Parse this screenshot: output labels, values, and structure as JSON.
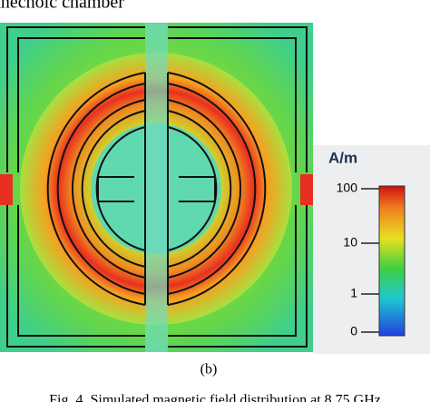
{
  "header": {
    "text": "anechoic chamber"
  },
  "figure": {
    "colorbar": {
      "unit": "A/m",
      "ticks": [
        100,
        10,
        1,
        0
      ]
    },
    "sublabel": "(b)"
  },
  "caption": "Fig. 4. Simulated magnetic field distribution at 8.75 GHz"
}
